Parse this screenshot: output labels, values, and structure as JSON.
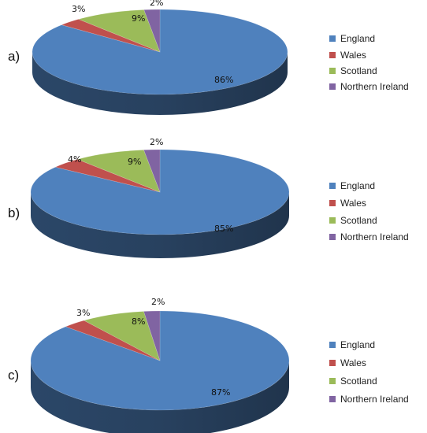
{
  "chart_data": [
    {
      "panel_label": "a)",
      "type": "pie",
      "categories": [
        "England",
        "Wales",
        "Scotland",
        "Northern Ireland"
      ],
      "values": [
        86,
        3,
        9,
        2
      ],
      "data_labels": [
        "86%",
        "3%",
        "9%",
        "2%"
      ],
      "legend_position": "right",
      "style": "3d"
    },
    {
      "panel_label": "b)",
      "type": "pie",
      "categories": [
        "England",
        "Wales",
        "Scotland",
        "Northern Ireland"
      ],
      "values": [
        85,
        4,
        9,
        2
      ],
      "data_labels": [
        "85%",
        "4%",
        "9%",
        "2%"
      ],
      "legend_position": "right",
      "style": "3d"
    },
    {
      "panel_label": "c)",
      "type": "pie",
      "categories": [
        "England",
        "Wales",
        "Scotland",
        "Northern Ireland"
      ],
      "values": [
        87,
        3,
        8,
        2
      ],
      "data_labels": [
        "87%",
        "3%",
        "8%",
        "2%"
      ],
      "legend_position": "right",
      "style": "3d"
    }
  ],
  "colors": {
    "England": "#4f81bd",
    "Wales": "#c0504d",
    "Scotland": "#9bbb59",
    "Northern Ireland": "#8064a2"
  }
}
